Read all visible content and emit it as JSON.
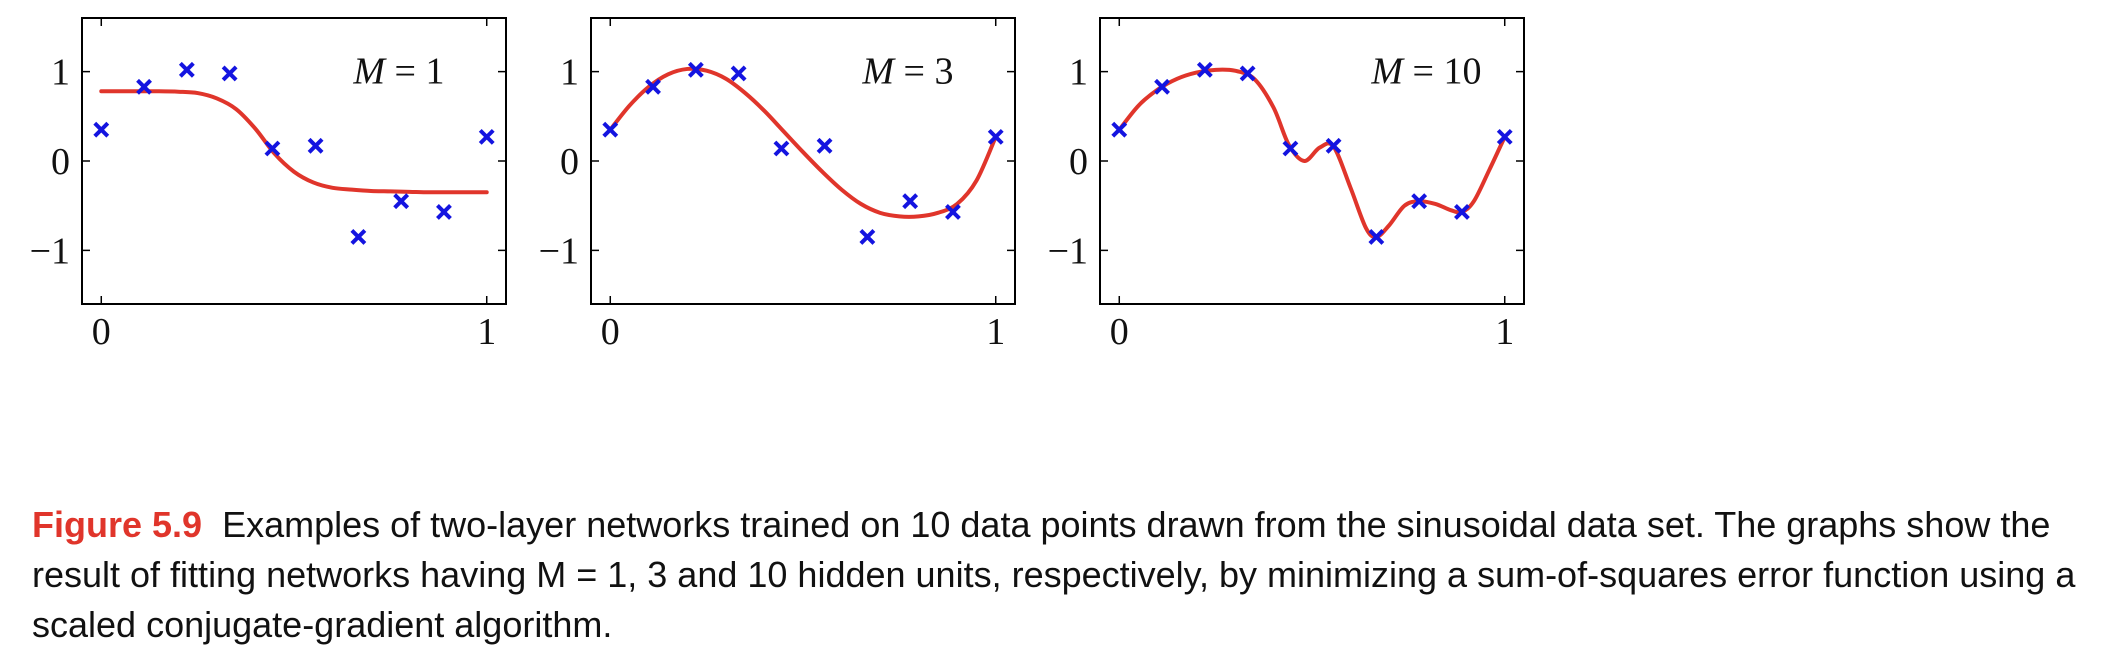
{
  "chart_data": [
    {
      "type": "line",
      "annotation": {
        "var": "M",
        "eq": " = ",
        "val": "1"
      },
      "xlim": [
        -0.05,
        1.05
      ],
      "ylim": [
        -1.6,
        1.6
      ],
      "xticks": [
        {
          "value": 0,
          "label": "0"
        },
        {
          "value": 1,
          "label": "1"
        }
      ],
      "yticks": [
        {
          "value": 1,
          "label": "1"
        },
        {
          "value": 0,
          "label": "0"
        },
        {
          "value": -1,
          "label": "−1"
        }
      ],
      "series": [
        {
          "kind": "fit-curve",
          "color": "#e0352b",
          "x": [
            0,
            0.05,
            0.1,
            0.15,
            0.2,
            0.25,
            0.3,
            0.35,
            0.4,
            0.45,
            0.5,
            0.55,
            0.6,
            0.65,
            0.7,
            0.75,
            0.8,
            0.85,
            0.9,
            0.95,
            1.0
          ],
          "y": [
            0.78,
            0.78,
            0.78,
            0.78,
            0.775,
            0.76,
            0.7,
            0.58,
            0.36,
            0.08,
            -0.12,
            -0.24,
            -0.3,
            -0.32,
            -0.335,
            -0.34,
            -0.345,
            -0.35,
            -0.35,
            -0.35,
            -0.35
          ]
        },
        {
          "kind": "data-points",
          "color": "#1414e0",
          "x": [
            0,
            0.111,
            0.222,
            0.333,
            0.444,
            0.556,
            0.667,
            0.778,
            0.889,
            1.0
          ],
          "y": [
            0.35,
            0.83,
            1.02,
            0.98,
            0.14,
            0.17,
            -0.85,
            -0.45,
            -0.57,
            0.27
          ]
        }
      ]
    },
    {
      "type": "line",
      "annotation": {
        "var": "M",
        "eq": " = ",
        "val": "3"
      },
      "xlim": [
        -0.05,
        1.05
      ],
      "ylim": [
        -1.6,
        1.6
      ],
      "xticks": [
        {
          "value": 0,
          "label": "0"
        },
        {
          "value": 1,
          "label": "1"
        }
      ],
      "yticks": [
        {
          "value": 1,
          "label": "1"
        },
        {
          "value": 0,
          "label": "0"
        },
        {
          "value": -1,
          "label": "−1"
        }
      ],
      "series": [
        {
          "kind": "fit-curve",
          "color": "#e0352b",
          "x": [
            0,
            0.05,
            0.1,
            0.15,
            0.2,
            0.25,
            0.3,
            0.35,
            0.4,
            0.45,
            0.5,
            0.55,
            0.6,
            0.65,
            0.7,
            0.75,
            0.8,
            0.85,
            0.9,
            0.95,
            1.0
          ],
          "y": [
            0.35,
            0.62,
            0.83,
            0.97,
            1.03,
            1.01,
            0.92,
            0.76,
            0.56,
            0.33,
            0.1,
            -0.12,
            -0.32,
            -0.48,
            -0.58,
            -0.62,
            -0.62,
            -0.58,
            -0.48,
            -0.22,
            0.27
          ]
        },
        {
          "kind": "data-points",
          "color": "#1414e0",
          "x": [
            0,
            0.111,
            0.222,
            0.333,
            0.444,
            0.556,
            0.667,
            0.778,
            0.889,
            1.0
          ],
          "y": [
            0.35,
            0.83,
            1.02,
            0.98,
            0.14,
            0.17,
            -0.85,
            -0.45,
            -0.57,
            0.27
          ]
        }
      ]
    },
    {
      "type": "line",
      "annotation": {
        "var": "M",
        "eq": " = ",
        "val": "10"
      },
      "xlim": [
        -0.05,
        1.05
      ],
      "ylim": [
        -1.6,
        1.6
      ],
      "xticks": [
        {
          "value": 0,
          "label": "0"
        },
        {
          "value": 1,
          "label": "1"
        }
      ],
      "yticks": [
        {
          "value": 1,
          "label": "1"
        },
        {
          "value": 0,
          "label": "0"
        },
        {
          "value": -1,
          "label": "−1"
        }
      ],
      "series": [
        {
          "kind": "fit-curve",
          "color": "#e0352b",
          "x": [
            0,
            0.05,
            0.1,
            0.15,
            0.2,
            0.25,
            0.3,
            0.35,
            0.4,
            0.44,
            0.48,
            0.52,
            0.556,
            0.6,
            0.64,
            0.667,
            0.7,
            0.74,
            0.778,
            0.82,
            0.86,
            0.889,
            0.92,
            0.96,
            1.0
          ],
          "y": [
            0.35,
            0.62,
            0.8,
            0.92,
            0.99,
            1.02,
            1.01,
            0.92,
            0.6,
            0.18,
            0.0,
            0.15,
            0.16,
            -0.3,
            -0.75,
            -0.85,
            -0.72,
            -0.5,
            -0.45,
            -0.48,
            -0.55,
            -0.57,
            -0.45,
            -0.1,
            0.27
          ]
        },
        {
          "kind": "data-points",
          "color": "#1414e0",
          "x": [
            0,
            0.111,
            0.222,
            0.333,
            0.444,
            0.556,
            0.667,
            0.778,
            0.889,
            1.0
          ],
          "y": [
            0.35,
            0.83,
            1.02,
            0.98,
            0.14,
            0.17,
            -0.85,
            -0.45,
            -0.57,
            0.27
          ]
        }
      ]
    }
  ],
  "caption": {
    "label": "Figure 5.9",
    "text": "Examples of two-layer networks trained on 10 data points drawn from the sinusoidal data set. The graphs show the result of fitting networks having M = 1, 3 and 10 hidden units, respectively, by minimizing a sum-of-squares error function using a scaled conjugate-gradient algorithm."
  }
}
